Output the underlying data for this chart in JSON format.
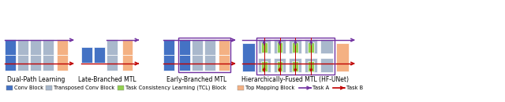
{
  "fig_width": 6.4,
  "fig_height": 1.3,
  "dpi": 100,
  "bg_color": "#ffffff",
  "blue_color": "#4472C4",
  "gray_color": "#A9B8CC",
  "green_color": "#92D050",
  "orange_color": "#F4B183",
  "purple_arrow": "#7030A0",
  "red_arrow": "#C00000",
  "section_labels": [
    "Dual-Path Learning",
    "Late-Branched MTL",
    "Early-Branched MTL",
    "Hierarchically-Fused MTL (HF-UNet)"
  ],
  "legend_items": [
    {
      "label": "Conv Block",
      "color": "#4472C4"
    },
    {
      "label": "Transposed Conv Block",
      "color": "#A9B8CC"
    },
    {
      "label": "Task Consistency Learning (TCL) Block",
      "color": "#92D050"
    },
    {
      "label": "Top Mapping Block",
      "color": "#F4B183"
    },
    {
      "label": "Task A",
      "color": "#7030A0",
      "arrow": true
    },
    {
      "label": "Task B",
      "color": "#C00000",
      "arrow": true
    }
  ]
}
